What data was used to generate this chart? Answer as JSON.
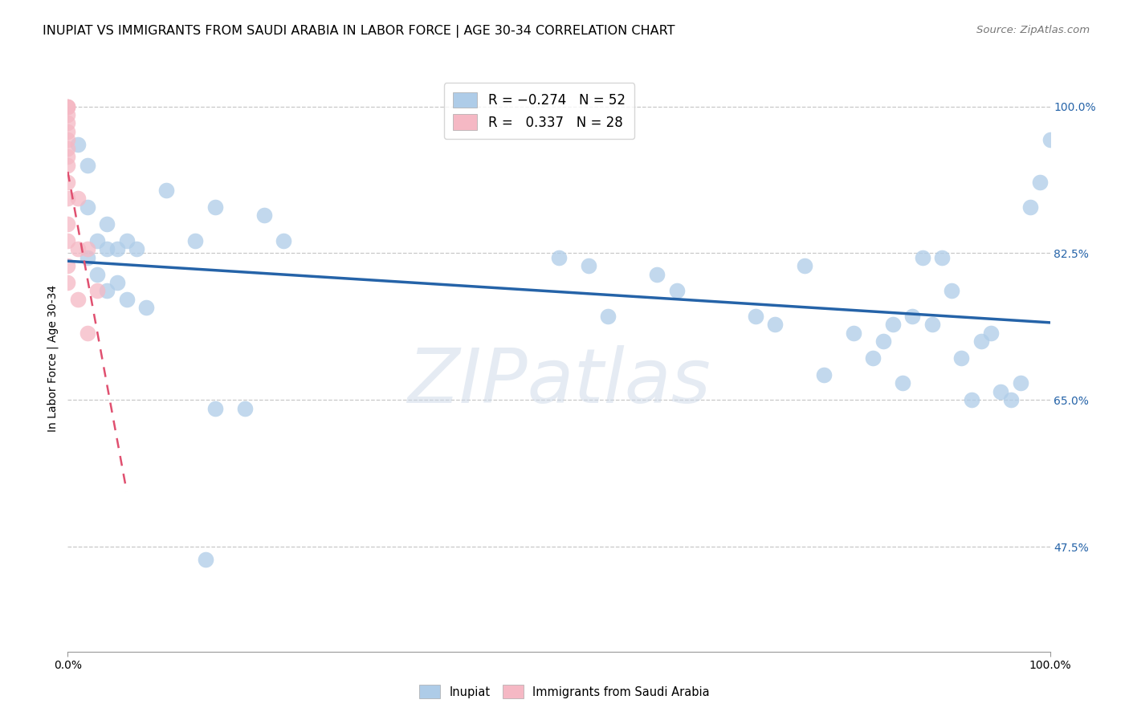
{
  "title": "INUPIAT VS IMMIGRANTS FROM SAUDI ARABIA IN LABOR FORCE | AGE 30-34 CORRELATION CHART",
  "source": "Source: ZipAtlas.com",
  "ylabel": "In Labor Force | Age 30-34",
  "xmin": 0.0,
  "xmax": 1.0,
  "ymin": 0.35,
  "ymax": 1.05,
  "inupiat_x": [
    0.01,
    0.02,
    0.02,
    0.02,
    0.03,
    0.03,
    0.04,
    0.04,
    0.04,
    0.05,
    0.05,
    0.06,
    0.06,
    0.07,
    0.08,
    0.1,
    0.13,
    0.15,
    0.2,
    0.22,
    0.5,
    0.53,
    0.55,
    0.6,
    0.62,
    0.7,
    0.72,
    0.75,
    0.77,
    0.8,
    0.82,
    0.83,
    0.84,
    0.85,
    0.86,
    0.87,
    0.88,
    0.89,
    0.9,
    0.91,
    0.92,
    0.93,
    0.94,
    0.95,
    0.96,
    0.97,
    0.98,
    0.99,
    1.0,
    0.14,
    0.15,
    0.18
  ],
  "inupiat_y": [
    0.955,
    0.93,
    0.88,
    0.82,
    0.84,
    0.8,
    0.86,
    0.83,
    0.78,
    0.83,
    0.79,
    0.84,
    0.77,
    0.83,
    0.76,
    0.9,
    0.84,
    0.88,
    0.87,
    0.84,
    0.82,
    0.81,
    0.75,
    0.8,
    0.78,
    0.75,
    0.74,
    0.81,
    0.68,
    0.73,
    0.7,
    0.72,
    0.74,
    0.67,
    0.75,
    0.82,
    0.74,
    0.82,
    0.78,
    0.7,
    0.65,
    0.72,
    0.73,
    0.66,
    0.65,
    0.67,
    0.88,
    0.91,
    0.96,
    0.46,
    0.64,
    0.64
  ],
  "saudi_x": [
    0.0,
    0.0,
    0.0,
    0.0,
    0.0,
    0.0,
    0.0,
    0.0,
    0.0,
    0.0,
    0.0,
    0.0,
    0.0,
    0.0,
    0.0,
    0.0,
    0.01,
    0.01,
    0.01,
    0.02,
    0.02,
    0.03
  ],
  "saudi_y": [
    1.0,
    1.0,
    1.0,
    0.99,
    0.98,
    0.97,
    0.96,
    0.95,
    0.94,
    0.93,
    0.91,
    0.89,
    0.86,
    0.84,
    0.81,
    0.79,
    0.89,
    0.83,
    0.77,
    0.83,
    0.73,
    0.78
  ],
  "inupiat_color": "#aecce8",
  "saudi_color": "#f5b8c4",
  "trendline_inupiat_color": "#2563a8",
  "trendline_saudi_color": "#e05070",
  "background_color": "#ffffff",
  "watermark_text": "ZIPatlas",
  "ytick_positions": [
    0.475,
    0.65,
    0.825,
    1.0
  ],
  "ytick_labels": [
    "47.5%",
    "65.0%",
    "82.5%",
    "100.0%"
  ],
  "title_fontsize": 11.5,
  "axis_label_fontsize": 10,
  "tick_fontsize": 10,
  "legend_fontsize": 12,
  "source_fontsize": 9.5
}
